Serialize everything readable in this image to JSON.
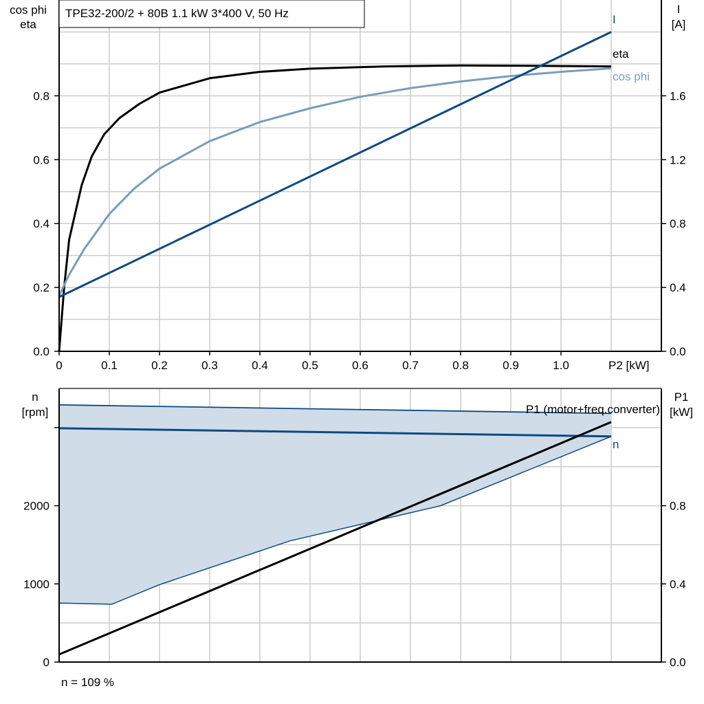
{
  "title": "TPE32-200/2 + 80B   1.1 kW   3*400 V, 50 Hz",
  "footer": "n = 109 %",
  "colors": {
    "eta": "#000000",
    "cos_phi": "#7a9cbb",
    "current": "#0d4a80",
    "n": "#0d4a80",
    "band_fill": "#d0dce7",
    "p1": "#000000",
    "grid": "#cccccc"
  },
  "chart_data": [
    {
      "type": "line",
      "title": "TPE32-200/2 + 80B   1.1 kW   3*400 V, 50 Hz",
      "xlabel": "P2 [kW]",
      "ylabel_left": [
        "cos phi",
        "eta"
      ],
      "ylabel_right": [
        "I",
        "[A]"
      ],
      "xlim": [
        0,
        1.2
      ],
      "ylim_left": [
        0,
        1.1
      ],
      "ylim_right": [
        0,
        2.2
      ],
      "grid": true,
      "x_ticks": [
        "0",
        "0.1",
        "0.2",
        "0.3",
        "0.4",
        "0.5",
        "0.6",
        "0.7",
        "0.8",
        "0.9",
        "1.0"
      ],
      "y_left_ticks": [
        "0.0",
        "0.2",
        "0.4",
        "0.6",
        "0.8"
      ],
      "y_right_ticks": [
        "0.0",
        "0.4",
        "0.8",
        "1.2",
        "1.6"
      ],
      "series": [
        {
          "name": "eta",
          "axis": "left",
          "x": [
            0,
            0.01,
            0.02,
            0.045,
            0.065,
            0.09,
            0.12,
            0.16,
            0.2,
            0.3,
            0.4,
            0.5,
            0.65,
            0.8,
            0.95,
            1.1
          ],
          "y": [
            0,
            0.2,
            0.35,
            0.52,
            0.61,
            0.68,
            0.73,
            0.775,
            0.81,
            0.855,
            0.875,
            0.885,
            0.892,
            0.895,
            0.894,
            0.892
          ]
        },
        {
          "name": "cos phi",
          "axis": "left",
          "x": [
            0,
            0.02,
            0.05,
            0.1,
            0.15,
            0.2,
            0.3,
            0.4,
            0.5,
            0.6,
            0.7,
            0.8,
            0.9,
            1.0,
            1.1
          ],
          "y": [
            0.174,
            0.24,
            0.32,
            0.43,
            0.51,
            0.572,
            0.658,
            0.718,
            0.761,
            0.797,
            0.824,
            0.845,
            0.862,
            0.875,
            0.886
          ]
        },
        {
          "name": "I",
          "axis": "right",
          "x": [
            0,
            1.1
          ],
          "y": [
            0.34,
            2.0
          ]
        }
      ]
    },
    {
      "type": "line",
      "xlim": [
        0,
        1.2
      ],
      "ylabel_left": [
        "n",
        "[rpm]"
      ],
      "ylabel_right": [
        "P1",
        "[kW]"
      ],
      "ylim_left": [
        0,
        3500
      ],
      "ylim_right": [
        0,
        1.4
      ],
      "grid": true,
      "y_left_ticks": [
        "0",
        "1000",
        "2000",
        ""
      ],
      "y_right_ticks": [
        "0.0",
        "0.4",
        "0.8"
      ],
      "band": {
        "upper": {
          "x": [
            0,
            1.1
          ],
          "y": [
            3290,
            3180
          ]
        },
        "lower": {
          "x": [
            0,
            0.105,
            0.2,
            0.46,
            0.76,
            1.1
          ],
          "y": [
            755,
            740,
            990,
            1550,
            2000,
            2886
          ]
        }
      },
      "series": [
        {
          "name": "n",
          "axis": "left",
          "x": [
            0,
            1.1
          ],
          "y": [
            2991,
            2886
          ]
        },
        {
          "name": "P1 (motor+freq.converter)",
          "axis": "right",
          "x": [
            0,
            1.1
          ],
          "y": [
            0.039,
            1.228
          ]
        }
      ]
    }
  ]
}
